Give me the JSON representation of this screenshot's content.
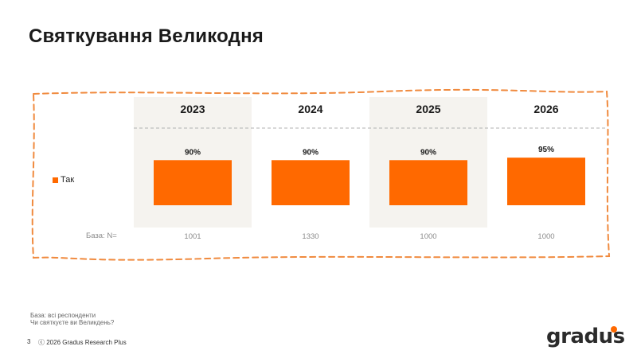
{
  "slide": {
    "title": "Святкування Великодня",
    "page_number": "3",
    "copyright": "ⓒ 2026 Gradus Research Plus",
    "logo_text": "gradus"
  },
  "footnotes": {
    "base": "База: всі респонденти",
    "question": "Чи святкуєте ви Великдень?"
  },
  "colors": {
    "accent": "#ff6900",
    "column_shade": "#f5f3ef",
    "frame": "#f08a3e",
    "divider": "#b0b0b0"
  },
  "chart_data": {
    "type": "bar",
    "categories": [
      "2023",
      "2024",
      "2025",
      "2026"
    ],
    "series": [
      {
        "name": "Так",
        "values": [
          90,
          90,
          90,
          95
        ]
      }
    ],
    "value_labels": [
      "90%",
      "90%",
      "90%",
      "95%"
    ],
    "unit": "%",
    "ylim": [
      0,
      100
    ],
    "base_label": "База: N=",
    "base_values": [
      "1001",
      "1330",
      "1000",
      "1000"
    ],
    "legend_position": "left",
    "grid": false
  }
}
